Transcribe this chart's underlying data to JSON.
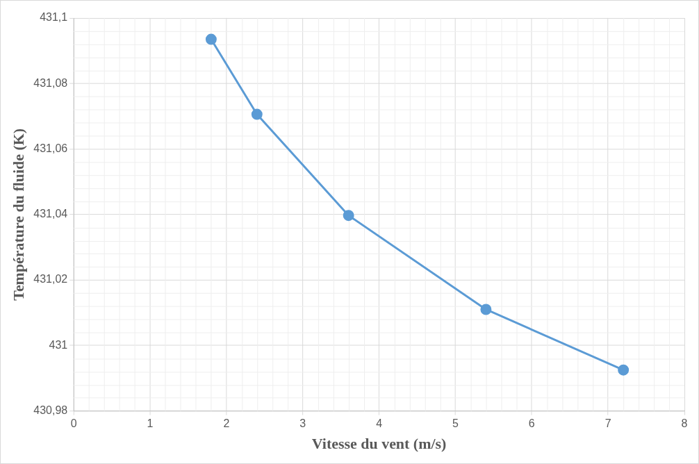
{
  "chart_data": {
    "type": "line",
    "xlabel": "Vitesse du vent (m/s)",
    "ylabel": "Température du fluide (K)",
    "x": [
      1.8,
      2.4,
      3.6,
      5.4,
      7.2
    ],
    "series": [
      {
        "color": "#5b9bd5",
        "values": [
          431.0935,
          431.0706,
          431.0397,
          431.011,
          430.9925
        ]
      }
    ],
    "xlim": [
      0,
      8
    ],
    "xticks": [
      0,
      1,
      2,
      3,
      4,
      5,
      6,
      7,
      8
    ],
    "ylim": [
      430.98,
      431.1
    ],
    "yticks": [
      {
        "value": 430.98,
        "label": "430,98"
      },
      {
        "value": 431,
        "label": "431"
      },
      {
        "value": 431.02,
        "label": "431,02"
      },
      {
        "value": 431.04,
        "label": "431,04"
      },
      {
        "value": 431.06,
        "label": "431,06"
      },
      {
        "value": 431.08,
        "label": "431,08"
      },
      {
        "value": 431.1,
        "label": "431,1"
      }
    ],
    "grid": true,
    "marker": "circle",
    "line_style": "solid",
    "legend": false
  }
}
